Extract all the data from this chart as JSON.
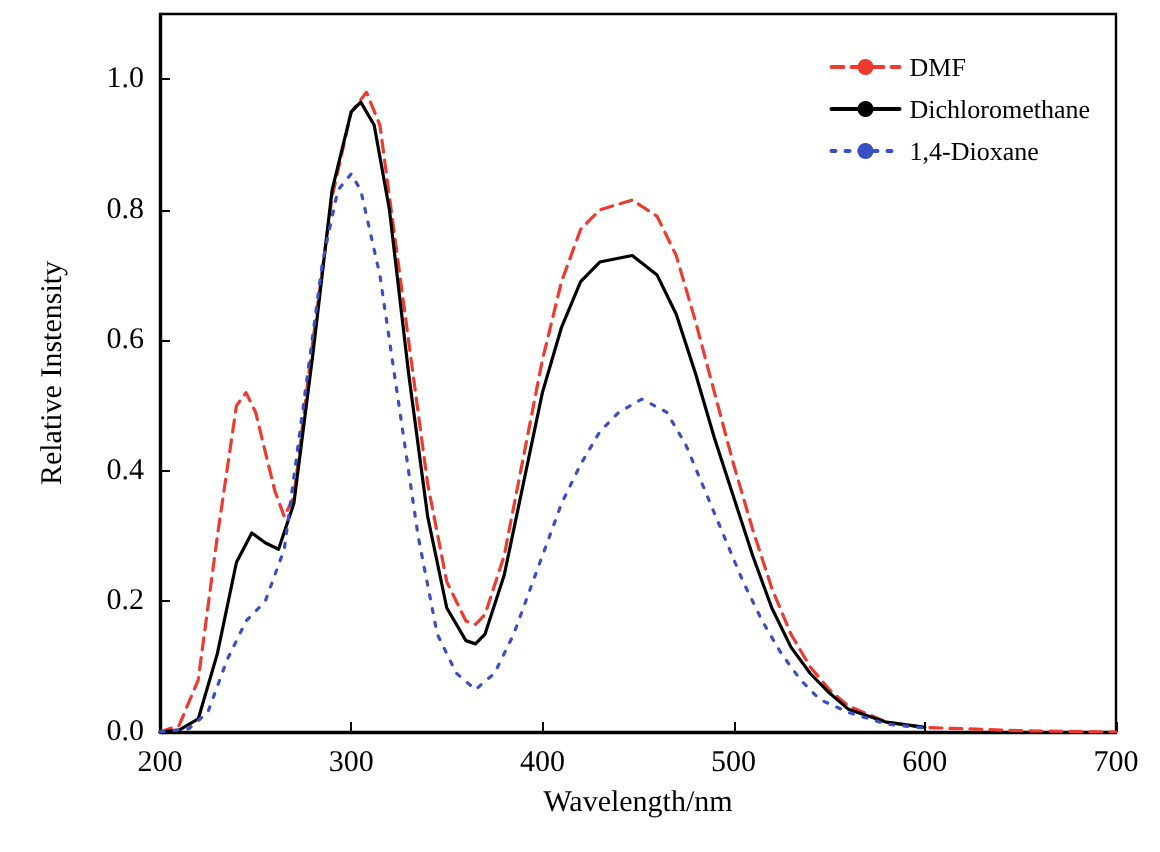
{
  "chart_data": {
    "type": "line",
    "xlabel": "Wavelength/nm",
    "ylabel": "Relative Instensity",
    "xlim": [
      200,
      700
    ],
    "xticks": [
      200,
      300,
      400,
      500,
      600,
      700
    ],
    "ylim": [
      0,
      1.1
    ],
    "yticks": [
      {
        "value": 0,
        "label": "0.0"
      },
      {
        "value": 0.2,
        "label": "0.2"
      },
      {
        "value": 0.4,
        "label": "0.4"
      },
      {
        "value": 0.6,
        "label": "0.6"
      },
      {
        "value": 0.8,
        "label": "0.8"
      },
      {
        "value": 1,
        "label": "1.0"
      }
    ],
    "grid": false,
    "legend": "top right",
    "marker": "none",
    "series": [
      {
        "name": "DMF",
        "color": "#ee3b2f",
        "line_style": "dashed",
        "x": [
          200,
          210,
          220,
          230,
          240,
          245,
          250,
          260,
          265,
          270,
          280,
          290,
          300,
          308,
          315,
          320,
          330,
          340,
          350,
          360,
          365,
          370,
          380,
          390,
          400,
          410,
          420,
          430,
          447,
          460,
          470,
          480,
          490,
          500,
          510,
          520,
          530,
          540,
          550,
          560,
          580,
          600,
          650,
          700
        ],
        "values": [
          0,
          0.01,
          0.08,
          0.3,
          0.5,
          0.52,
          0.49,
          0.37,
          0.33,
          0.36,
          0.6,
          0.82,
          0.95,
          0.98,
          0.93,
          0.82,
          0.6,
          0.38,
          0.23,
          0.17,
          0.165,
          0.18,
          0.27,
          0.42,
          0.57,
          0.69,
          0.77,
          0.8,
          0.815,
          0.79,
          0.73,
          0.63,
          0.52,
          0.41,
          0.31,
          0.22,
          0.15,
          0.1,
          0.065,
          0.04,
          0.015,
          0.007,
          0.002,
          0
        ]
      },
      {
        "name": "Dichloromethane",
        "color": "#000000",
        "line_style": "solid",
        "x": [
          200,
          210,
          220,
          230,
          240,
          248,
          255,
          262,
          270,
          280,
          290,
          300,
          305,
          312,
          320,
          330,
          340,
          350,
          360,
          365,
          370,
          380,
          390,
          400,
          410,
          420,
          430,
          447,
          460,
          470,
          480,
          490,
          500,
          510,
          520,
          530,
          540,
          550,
          560,
          580,
          600
        ],
        "values": [
          0,
          0.003,
          0.02,
          0.12,
          0.26,
          0.305,
          0.29,
          0.28,
          0.35,
          0.58,
          0.83,
          0.95,
          0.965,
          0.93,
          0.8,
          0.55,
          0.33,
          0.19,
          0.14,
          0.135,
          0.15,
          0.24,
          0.38,
          0.52,
          0.62,
          0.69,
          0.72,
          0.73,
          0.7,
          0.64,
          0.55,
          0.45,
          0.36,
          0.27,
          0.19,
          0.13,
          0.09,
          0.06,
          0.035,
          0.015,
          0.007
        ]
      },
      {
        "name": "1,4-Dioxane",
        "color": "#3b4fc4",
        "line_style": "dotted",
        "x": [
          200,
          215,
          225,
          235,
          245,
          255,
          265,
          275,
          285,
          293,
          300,
          305,
          315,
          325,
          335,
          345,
          355,
          365,
          375,
          385,
          400,
          410,
          420,
          430,
          440,
          452,
          465,
          475,
          485,
          495,
          505,
          515,
          525,
          535,
          545,
          560,
          580,
          600
        ],
        "values": [
          0,
          0.005,
          0.03,
          0.11,
          0.17,
          0.2,
          0.28,
          0.5,
          0.72,
          0.83,
          0.855,
          0.83,
          0.7,
          0.5,
          0.3,
          0.15,
          0.09,
          0.065,
          0.09,
          0.15,
          0.27,
          0.35,
          0.41,
          0.46,
          0.49,
          0.51,
          0.49,
          0.44,
          0.37,
          0.3,
          0.23,
          0.17,
          0.12,
          0.08,
          0.05,
          0.03,
          0.012,
          0.006
        ]
      }
    ]
  }
}
